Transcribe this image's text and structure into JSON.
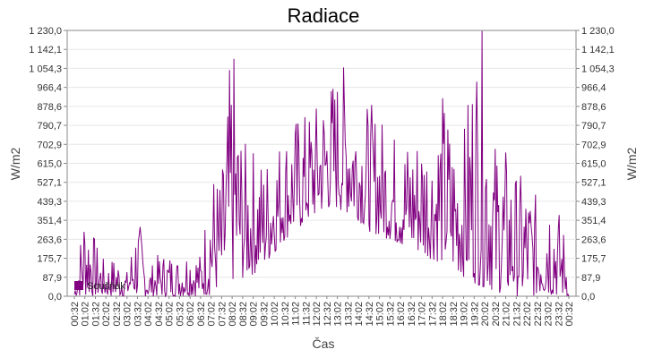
{
  "chart_data": {
    "type": "line",
    "title": "Radiace",
    "xlabel": "Čas",
    "ylabel_left": "W/m2",
    "ylabel_right": "W/m2",
    "ylim": [
      0,
      1230
    ],
    "y_ticks": [
      "0,0",
      "87,9",
      "175,7",
      "263,6",
      "351,4",
      "439,3",
      "527,1",
      "615,0",
      "702,9",
      "790,7",
      "878,6",
      "966,4",
      "1 054,3",
      "1 142,1",
      "1 230,0"
    ],
    "x_ticks": [
      "00:32",
      "01:02",
      "01:32",
      "02:02",
      "02:32",
      "03:02",
      "03:32",
      "04:02",
      "04:32",
      "05:02",
      "05:32",
      "06:02",
      "06:32",
      "07:02",
      "07:32",
      "08:02",
      "08:32",
      "09:02",
      "09:32",
      "10:02",
      "10:32",
      "11:02",
      "11:32",
      "12:02",
      "12:32",
      "13:02",
      "13:32",
      "14:02",
      "14:32",
      "15:02",
      "15:32",
      "16:02",
      "16:32",
      "17:02",
      "17:32",
      "18:02",
      "18:32",
      "19:02",
      "19:32",
      "20:02",
      "20:32",
      "21:02",
      "21:32",
      "22:02",
      "22:32",
      "23:02",
      "23:32",
      "00:32"
    ],
    "legend_position": "bottom-left",
    "grid": true,
    "colors": {
      "series": "#800080",
      "grid": "#e6e6e6",
      "axis": "#888888"
    },
    "series": [
      {
        "name": "Soušňák",
        "x": [
          "00:32",
          "01:02",
          "01:32",
          "02:02",
          "02:32",
          "03:02",
          "03:32",
          "04:02",
          "04:32",
          "05:02",
          "05:32",
          "06:02",
          "06:32",
          "07:02",
          "07:32",
          "08:02",
          "08:32",
          "09:02",
          "09:32",
          "10:02",
          "10:32",
          "11:02",
          "11:32",
          "12:02",
          "12:32",
          "13:02",
          "13:32",
          "14:02",
          "14:32",
          "15:02",
          "15:32",
          "16:02",
          "16:32",
          "17:02",
          "17:32",
          "18:02",
          "18:32",
          "19:02",
          "19:32",
          "20:02",
          "20:32",
          "21:02",
          "21:32",
          "22:02",
          "22:32",
          "23:02",
          "23:32",
          "00:32"
        ],
        "low": [
          0,
          0,
          0,
          0,
          0,
          0,
          0,
          0,
          0,
          0,
          0,
          0,
          0,
          5,
          40,
          60,
          80,
          100,
          130,
          200,
          260,
          300,
          330,
          370,
          400,
          400,
          380,
          350,
          300,
          280,
          260,
          230,
          210,
          190,
          170,
          150,
          120,
          90,
          60,
          40,
          20,
          10,
          0,
          0,
          0,
          0,
          0,
          0
        ],
        "high": [
          30,
          480,
          260,
          150,
          200,
          120,
          410,
          120,
          200,
          210,
          180,
          260,
          200,
          620,
          560,
          1230,
          720,
          700,
          650,
          720,
          780,
          840,
          860,
          900,
          1000,
          1060,
          1100,
          920,
          900,
          860,
          780,
          760,
          760,
          820,
          780,
          960,
          800,
          760,
          1230,
          1230,
          740,
          700,
          580,
          560,
          460,
          640,
          420,
          240
        ]
      }
    ]
  }
}
